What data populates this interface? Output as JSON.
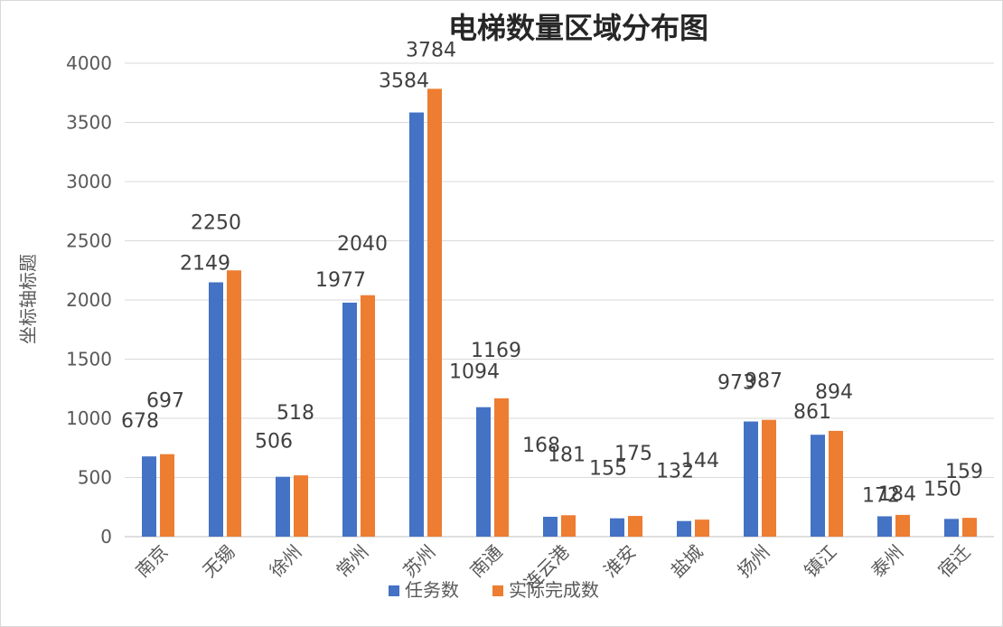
{
  "chart_data": {
    "type": "bar",
    "title": "电梯数量区域分布图",
    "ylabel": "坐标轴标题",
    "xlabel": "",
    "categories": [
      "南京",
      "无锡",
      "徐州",
      "常州",
      "苏州",
      "南通",
      "连云港",
      "淮安",
      "盐城",
      "扬州",
      "镇江",
      "泰州",
      "宿迁"
    ],
    "series": [
      {
        "name": "任务数",
        "color": "#4472c4",
        "values": [
          678,
          2149,
          506,
          1977,
          3584,
          1094,
          168,
          155,
          132,
          973,
          861,
          172,
          150
        ]
      },
      {
        "name": "实际完成数",
        "color": "#ed7d31",
        "values": [
          697,
          2250,
          518,
          2040,
          3784,
          1169,
          181,
          175,
          144,
          987,
          894,
          184,
          159
        ]
      }
    ],
    "ylim": [
      0,
      4000
    ],
    "yticks": [
      0,
      500,
      1000,
      1500,
      2000,
      2500,
      3000,
      3500,
      4000
    ],
    "grid": true,
    "legend": "bottom"
  }
}
